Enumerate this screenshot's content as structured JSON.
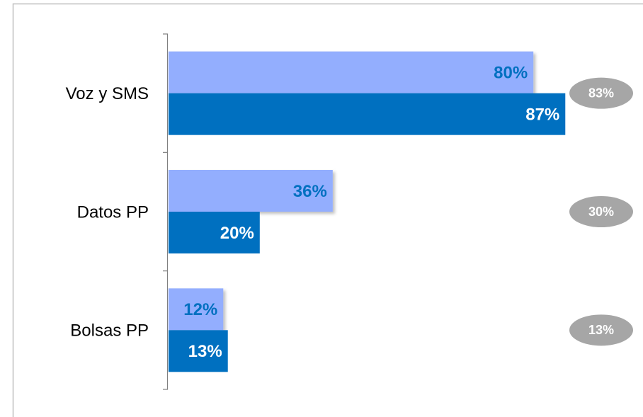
{
  "chart_data": {
    "type": "hbar",
    "categories": [
      "Voz y SMS",
      "Datos PP",
      "Bolsas PP"
    ],
    "xlim": [
      0,
      100
    ],
    "series": [
      {
        "color": "#93aefe",
        "label_color": "#0070c0",
        "values": [
          80,
          36,
          12
        ],
        "value_labels": [
          "80%",
          "36%",
          "12%"
        ]
      },
      {
        "color": "#0070c0",
        "label_color": "#ffffff",
        "values": [
          87,
          20,
          13
        ],
        "value_labels": [
          "87%",
          "20%",
          "13%"
        ]
      }
    ],
    "badges": {
      "color": "#a6a6a6",
      "values": [
        83,
        30,
        13
      ],
      "value_labels": [
        "83%",
        "30%",
        "13%"
      ]
    }
  }
}
